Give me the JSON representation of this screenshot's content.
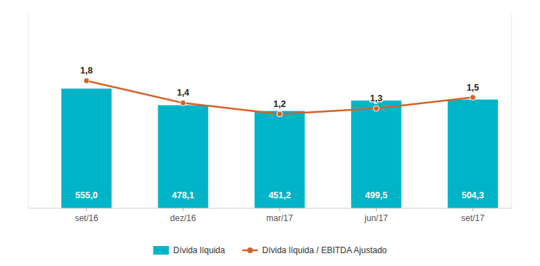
{
  "chart_data": {
    "type": "bar",
    "categories": [
      "set/16",
      "dez/16",
      "mar/17",
      "jun/17",
      "set/17"
    ],
    "series": [
      {
        "name": "Dívida líquida",
        "type": "bar",
        "color": "#00B4C8",
        "values": [
          555.0,
          478.1,
          451.2,
          499.5,
          504.3
        ],
        "value_labels": [
          "555,0",
          "478,1",
          "451,2",
          "499,5",
          "504,3"
        ]
      },
      {
        "name": "Dívida líquida / EBITDA Ajustado",
        "type": "line",
        "axis": "y2",
        "color": "#D4622A",
        "marker": "circle",
        "values": [
          1.8,
          1.4,
          1.2,
          1.3,
          1.5
        ],
        "value_labels": [
          "1,8",
          "1,4",
          "1,2",
          "1,3",
          "1,5"
        ]
      }
    ],
    "ylim": [
      0,
      900
    ],
    "yticks": [],
    "y2lim": [
      -0.5,
      3.0
    ],
    "y2ticks": [],
    "tick_labels": "x",
    "data_labels": true,
    "legend": "bottom",
    "grid": false
  }
}
